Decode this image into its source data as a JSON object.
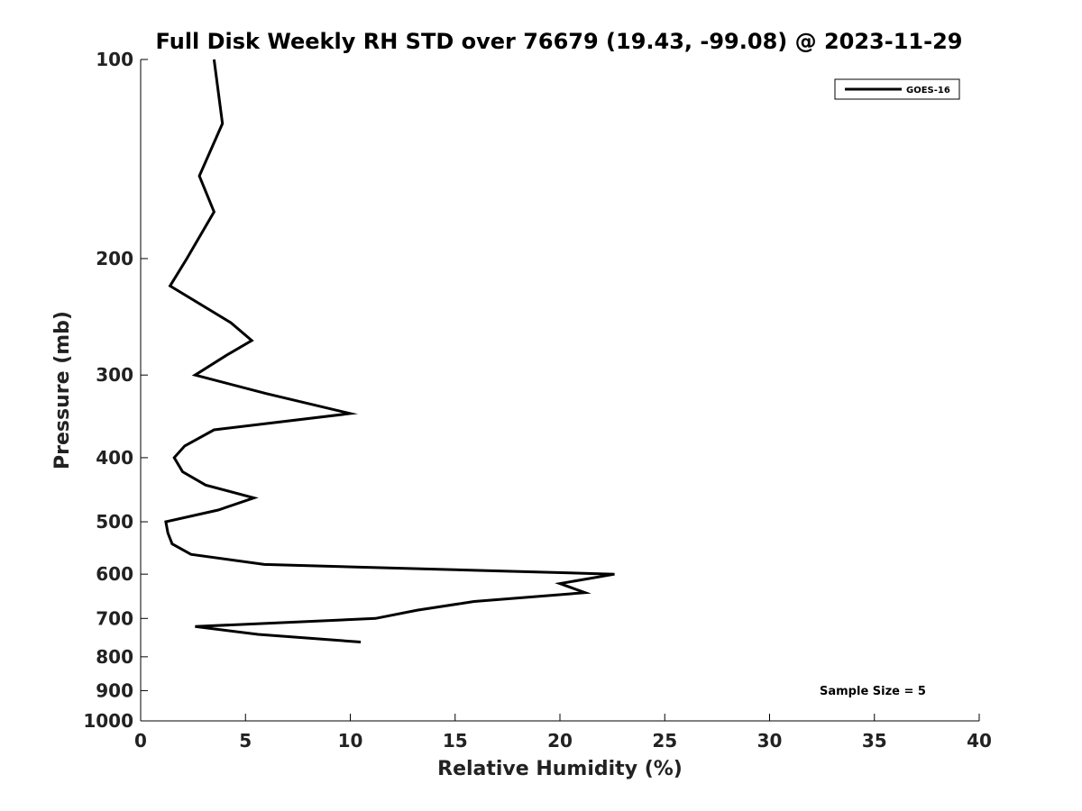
{
  "chart_data": {
    "type": "line",
    "title": "Full Disk Weekly RH STD over 76679 (19.43, -99.08) @ 2023-11-29",
    "xlabel": "Relative Humidity (%)",
    "ylabel": "Pressure (mb)",
    "xlim": [
      0,
      40
    ],
    "ylim": [
      100,
      1000
    ],
    "yscale": "log",
    "ydirection": "reversed",
    "xticks": [
      0,
      5,
      10,
      15,
      20,
      25,
      30,
      35,
      40
    ],
    "yticks": [
      100,
      200,
      300,
      400,
      500,
      600,
      700,
      800,
      900,
      1000
    ],
    "legend_position": "top-right",
    "annotation": "Sample Size = 5",
    "series": [
      {
        "name": "GOES-16",
        "color": "#000000",
        "points": [
          {
            "x": 3.5,
            "p": 100
          },
          {
            "x": 3.9,
            "p": 125
          },
          {
            "x": 2.8,
            "p": 150
          },
          {
            "x": 3.5,
            "p": 170
          },
          {
            "x": 2.2,
            "p": 200
          },
          {
            "x": 1.4,
            "p": 220
          },
          {
            "x": 4.3,
            "p": 250
          },
          {
            "x": 5.3,
            "p": 266
          },
          {
            "x": 4.1,
            "p": 280
          },
          {
            "x": 2.6,
            "p": 300
          },
          {
            "x": 6.0,
            "p": 320
          },
          {
            "x": 10.0,
            "p": 343
          },
          {
            "x": 3.5,
            "p": 363
          },
          {
            "x": 2.1,
            "p": 384
          },
          {
            "x": 1.6,
            "p": 400
          },
          {
            "x": 2.0,
            "p": 420
          },
          {
            "x": 3.1,
            "p": 440
          },
          {
            "x": 5.4,
            "p": 460
          },
          {
            "x": 3.7,
            "p": 480
          },
          {
            "x": 1.2,
            "p": 500
          },
          {
            "x": 1.3,
            "p": 520
          },
          {
            "x": 1.5,
            "p": 540
          },
          {
            "x": 2.4,
            "p": 560
          },
          {
            "x": 5.9,
            "p": 580
          },
          {
            "x": 22.6,
            "p": 600
          },
          {
            "x": 20.0,
            "p": 620
          },
          {
            "x": 21.2,
            "p": 640
          },
          {
            "x": 15.9,
            "p": 660
          },
          {
            "x": 13.2,
            "p": 680
          },
          {
            "x": 11.2,
            "p": 700
          },
          {
            "x": 2.6,
            "p": 720
          },
          {
            "x": 5.6,
            "p": 740
          },
          {
            "x": 10.5,
            "p": 760
          }
        ]
      }
    ]
  }
}
